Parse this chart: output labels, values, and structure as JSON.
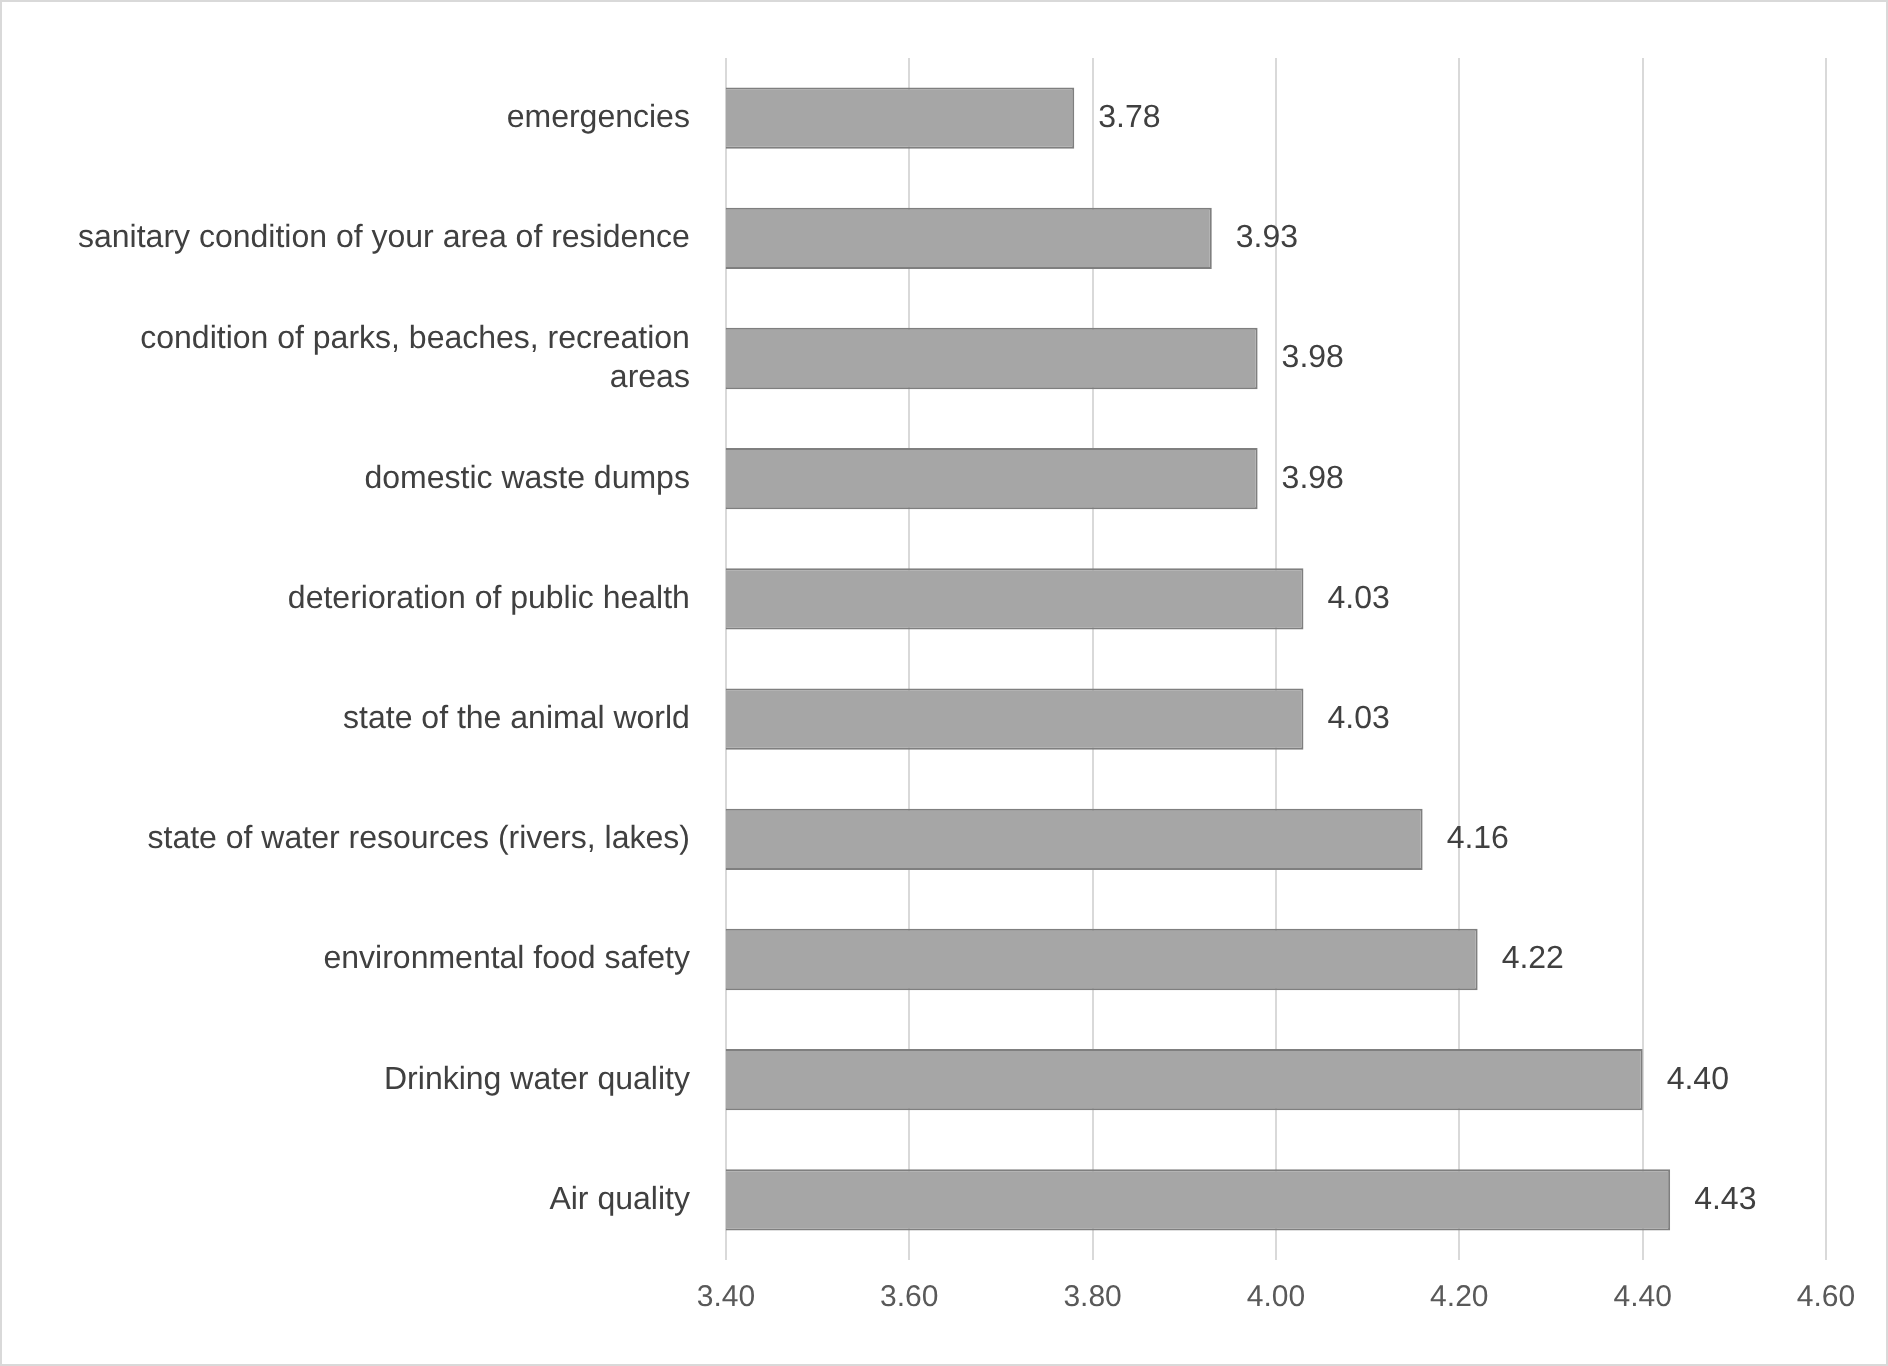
{
  "chart_data": {
    "type": "bar",
    "orientation": "horizontal",
    "categories": [
      "emergencies",
      "sanitary condition of your area of residence",
      "condition of parks, beaches, recreation areas",
      "domestic waste dumps",
      "deterioration of public health",
      "state of the animal world",
      "state of water resources (rivers, lakes)",
      "environmental food safety",
      "Drinking water quality",
      "Air quality"
    ],
    "values": [
      3.78,
      3.93,
      3.98,
      3.98,
      4.03,
      4.03,
      4.16,
      4.22,
      4.4,
      4.43
    ],
    "value_labels": [
      "3.78",
      "3.93",
      "3.98",
      "3.98",
      "4.03",
      "4.03",
      "4.16",
      "4.22",
      "4.40",
      "4.43"
    ],
    "color": "#a6a6a6",
    "xlim": [
      3.4,
      4.6
    ],
    "xticks": [
      {
        "value": 3.4,
        "label": "3.40"
      },
      {
        "value": 3.6,
        "label": "3.60"
      },
      {
        "value": 3.8,
        "label": "3.80"
      },
      {
        "value": 4.0,
        "label": "4.00"
      },
      {
        "value": 4.2,
        "label": "4.20"
      },
      {
        "value": 4.4,
        "label": "4.40"
      },
      {
        "value": 4.6,
        "label": "4.60"
      }
    ],
    "grid": "x",
    "legend": false
  }
}
